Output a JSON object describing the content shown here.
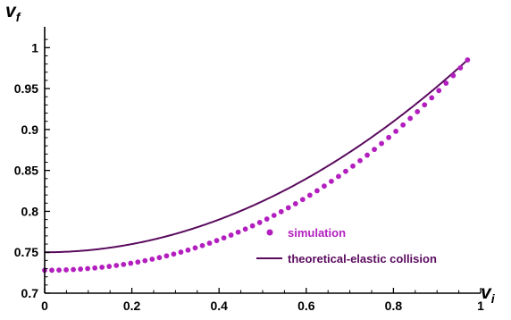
{
  "chart_data": {
    "type": "line",
    "title": "",
    "xlabel": {
      "main": "v",
      "sub": "i"
    },
    "ylabel": {
      "main": "v",
      "sub": "f"
    },
    "xlim": [
      0,
      1.0
    ],
    "ylim": [
      0.7,
      1.02
    ],
    "xticks": [
      "0",
      "0.2",
      "0.4",
      "0.6",
      "0.8",
      "1"
    ],
    "yticks": [
      "0.7",
      "0.75",
      "0.8",
      "0.85",
      "0.9",
      "0.95",
      "1"
    ],
    "grid": false,
    "legend_position": "bottom-right",
    "series": [
      {
        "name": "simulation",
        "kind": "scatter",
        "color": "#b31fbf",
        "x_start": 0,
        "x_end": 0.97,
        "point_count": 60,
        "y_at_x0": 0.728,
        "y_at_x_end": 0.985
      },
      {
        "name": "theoretical-elastic collision",
        "kind": "line",
        "color": "#5a0b5e",
        "x_start": 0,
        "x_end": 0.97,
        "y_at_x0": 0.75,
        "y_at_x_end": 0.985
      }
    ]
  }
}
